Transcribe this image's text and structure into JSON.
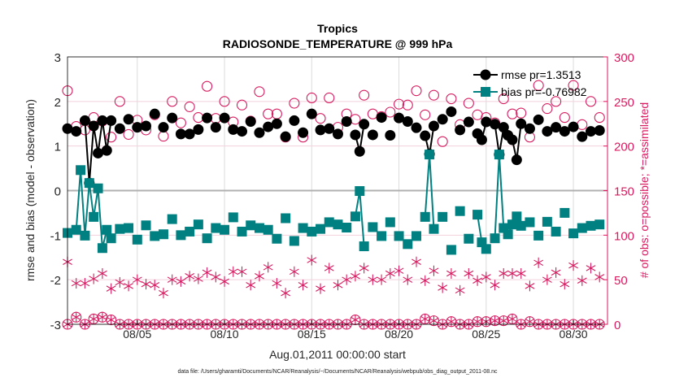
{
  "chart_data": {
    "type": "line",
    "title": "Tropics",
    "subtitle": "RADIOSONDE_TEMPERATURE @ 999 hPa",
    "xlabel": "Aug.01,2011 00:00:00 start",
    "ylabel": "rmse and bias (model - observation)",
    "ylabel_right": "# of obs: o=possible; *=assimilated",
    "footnote": "data file: /Users/gharamti/Documents/NCAR/Reanalysis/~/Documents/NCAR/Reanalysis/webpub/obs_diag_output_2011-08.nc",
    "xlim": [
      "08/01 00",
      "08/31 22"
    ],
    "ylim": [
      -3,
      3
    ],
    "ylim_right": [
      0,
      300
    ],
    "x_ticks": [
      "08/05",
      "08/10",
      "08/15",
      "08/20",
      "08/25",
      "08/30"
    ],
    "y_ticks": [
      "3",
      "2",
      "1",
      "0",
      "-1",
      "-2",
      "-3"
    ],
    "y_ticks_right": [
      "300",
      "250",
      "200",
      "150",
      "100",
      "50",
      "0"
    ],
    "grid": true,
    "legend_position": "top-right",
    "colors": {
      "rmse": "#000000",
      "bias": "#008080",
      "obs": "#d81b60",
      "zero_line": "#b0b0b0"
    },
    "series": [
      {
        "name": "rmse pr=1.3513",
        "axis": "left",
        "marker": "filled-circle",
        "points": [
          [
            "08/01 00",
            1.39
          ],
          [
            "08/01 12",
            1.33
          ],
          [
            "08/02 00",
            1.57
          ],
          [
            "08/02 06",
            0.17
          ],
          [
            "08/02 12",
            1.45
          ],
          [
            "08/02 18",
            0.84
          ],
          [
            "08/03 00",
            1.57
          ],
          [
            "08/03 06",
            0.9
          ],
          [
            "08/03 12",
            1.57
          ],
          [
            "08/04 00",
            1.39
          ],
          [
            "08/04 12",
            1.6
          ],
          [
            "08/05 00",
            1.42
          ],
          [
            "08/05 12",
            1.45
          ],
          [
            "08/06 00",
            1.72
          ],
          [
            "08/06 12",
            1.42
          ],
          [
            "08/07 00",
            1.63
          ],
          [
            "08/07 12",
            1.27
          ],
          [
            "08/08 00",
            1.27
          ],
          [
            "08/08 12",
            1.37
          ],
          [
            "08/09 00",
            1.63
          ],
          [
            "08/09 12",
            1.42
          ],
          [
            "08/10 00",
            1.63
          ],
          [
            "08/10 12",
            1.37
          ],
          [
            "08/11 00",
            1.33
          ],
          [
            "08/11 12",
            1.55
          ],
          [
            "08/12 00",
            1.3
          ],
          [
            "08/12 12",
            1.43
          ],
          [
            "08/13 00",
            1.5
          ],
          [
            "08/13 12",
            1.21
          ],
          [
            "08/14 00",
            1.57
          ],
          [
            "08/14 12",
            1.3
          ],
          [
            "08/15 00",
            1.72
          ],
          [
            "08/15 12",
            1.36
          ],
          [
            "08/16 00",
            1.39
          ],
          [
            "08/16 12",
            1.27
          ],
          [
            "08/17 00",
            1.55
          ],
          [
            "08/17 12",
            1.25
          ],
          [
            "08/17 18",
            0.88
          ],
          [
            "08/18 00",
            1.49
          ],
          [
            "08/18 12",
            1.25
          ],
          [
            "08/19 00",
            1.64
          ],
          [
            "08/19 12",
            1.24
          ],
          [
            "08/20 00",
            1.63
          ],
          [
            "08/20 12",
            1.55
          ],
          [
            "08/21 00",
            1.41
          ],
          [
            "08/21 12",
            1.23
          ],
          [
            "08/21 18",
            0.82
          ],
          [
            "08/22 00",
            1.45
          ],
          [
            "08/22 12",
            1.6
          ],
          [
            "08/23 00",
            1.77
          ],
          [
            "08/23 12",
            1.36
          ],
          [
            "08/24 00",
            1.54
          ],
          [
            "08/24 12",
            1.28
          ],
          [
            "08/24 18",
            1.14
          ],
          [
            "08/25 00",
            1.54
          ],
          [
            "08/25 12",
            1.49
          ],
          [
            "08/25 18",
            0.81
          ],
          [
            "08/26 00",
            1.42
          ],
          [
            "08/26 06",
            1.24
          ],
          [
            "08/26 12",
            1.14
          ],
          [
            "08/26 18",
            0.69
          ],
          [
            "08/27 00",
            1.5
          ],
          [
            "08/27 12",
            1.39
          ],
          [
            "08/28 00",
            1.59
          ],
          [
            "08/28 12",
            1.33
          ],
          [
            "08/29 00",
            1.42
          ],
          [
            "08/29 12",
            1.33
          ],
          [
            "08/30 00",
            1.43
          ],
          [
            "08/30 12",
            1.21
          ],
          [
            "08/31 00",
            1.33
          ],
          [
            "08/31 12",
            1.35
          ]
        ]
      },
      {
        "name": "bias pr=-0.76982",
        "axis": "left",
        "marker": "filled-square",
        "points": [
          [
            "08/01 00",
            -0.95
          ],
          [
            "08/01 12",
            -0.88
          ],
          [
            "08/01 18",
            0.46
          ],
          [
            "08/02 00",
            -1.01
          ],
          [
            "08/02 06",
            0.17
          ],
          [
            "08/02 12",
            -0.59
          ],
          [
            "08/02 18",
            0.05
          ],
          [
            "08/03 00",
            -1.29
          ],
          [
            "08/03 06",
            -0.88
          ],
          [
            "08/03 12",
            -1.07
          ],
          [
            "08/04 00",
            -0.86
          ],
          [
            "08/04 12",
            -0.84
          ],
          [
            "08/05 00",
            -1.1
          ],
          [
            "08/05 12",
            -0.78
          ],
          [
            "08/06 00",
            -1.02
          ],
          [
            "08/06 12",
            -0.98
          ],
          [
            "08/07 00",
            -0.64
          ],
          [
            "08/07 12",
            -1.0
          ],
          [
            "08/08 00",
            -0.92
          ],
          [
            "08/08 12",
            -0.76
          ],
          [
            "08/09 00",
            -1.07
          ],
          [
            "08/09 12",
            -0.84
          ],
          [
            "08/10 00",
            -0.88
          ],
          [
            "08/10 12",
            -0.6
          ],
          [
            "08/11 00",
            -0.92
          ],
          [
            "08/11 12",
            -0.78
          ],
          [
            "08/12 00",
            -0.84
          ],
          [
            "08/12 12",
            -0.88
          ],
          [
            "08/13 00",
            -1.08
          ],
          [
            "08/13 12",
            -0.62
          ],
          [
            "08/14 00",
            -1.13
          ],
          [
            "08/14 12",
            -0.84
          ],
          [
            "08/15 00",
            -0.92
          ],
          [
            "08/15 12",
            -0.86
          ],
          [
            "08/16 00",
            -0.71
          ],
          [
            "08/16 12",
            -0.76
          ],
          [
            "08/17 00",
            -0.83
          ],
          [
            "08/17 12",
            -0.58
          ],
          [
            "08/17 18",
            -0.01
          ],
          [
            "08/18 00",
            -1.25
          ],
          [
            "08/18 12",
            -0.82
          ],
          [
            "08/19 00",
            -1.02
          ],
          [
            "08/19 12",
            -0.71
          ],
          [
            "08/20 00",
            -1.02
          ],
          [
            "08/20 12",
            -1.2
          ],
          [
            "08/21 00",
            -1.02
          ],
          [
            "08/21 12",
            -0.59
          ],
          [
            "08/21 18",
            0.81
          ],
          [
            "08/22 00",
            -0.86
          ],
          [
            "08/22 12",
            -0.59
          ],
          [
            "08/23 00",
            -1.33
          ],
          [
            "08/23 12",
            -0.46
          ],
          [
            "08/24 00",
            -1.08
          ],
          [
            "08/24 12",
            -0.54
          ],
          [
            "08/24 18",
            -1.16
          ],
          [
            "08/25 00",
            -1.31
          ],
          [
            "08/25 12",
            -1.07
          ],
          [
            "08/25 18",
            0.81
          ],
          [
            "08/26 00",
            -0.84
          ],
          [
            "08/26 06",
            -0.98
          ],
          [
            "08/26 12",
            -0.76
          ],
          [
            "08/26 18",
            -0.58
          ],
          [
            "08/27 00",
            -0.79
          ],
          [
            "08/27 12",
            -0.71
          ],
          [
            "08/28 00",
            -1.01
          ],
          [
            "08/28 12",
            -0.7
          ],
          [
            "08/29 00",
            -0.92
          ],
          [
            "08/29 12",
            -0.5
          ],
          [
            "08/30 00",
            -0.96
          ],
          [
            "08/30 12",
            -0.84
          ],
          [
            "08/31 00",
            -0.79
          ],
          [
            "08/31 12",
            -0.76
          ]
        ]
      }
    ],
    "obs_times": [
      "08/01 00",
      "08/01 12",
      "08/02 00",
      "08/02 12",
      "08/03 00",
      "08/03 12",
      "08/04 00",
      "08/04 12",
      "08/05 00",
      "08/05 12",
      "08/06 00",
      "08/06 12",
      "08/07 00",
      "08/07 12",
      "08/08 00",
      "08/08 12",
      "08/09 00",
      "08/09 12",
      "08/10 00",
      "08/10 12",
      "08/11 00",
      "08/11 12",
      "08/12 00",
      "08/12 12",
      "08/13 00",
      "08/13 12",
      "08/14 00",
      "08/14 12",
      "08/15 00",
      "08/15 12",
      "08/16 00",
      "08/16 12",
      "08/17 00",
      "08/17 12",
      "08/18 00",
      "08/18 12",
      "08/19 00",
      "08/19 12",
      "08/20 00",
      "08/20 12",
      "08/21 00",
      "08/21 12",
      "08/22 00",
      "08/22 12",
      "08/23 00",
      "08/23 12",
      "08/24 00",
      "08/24 12",
      "08/25 00",
      "08/25 12",
      "08/26 00",
      "08/26 12",
      "08/27 00",
      "08/27 12",
      "08/28 00",
      "08/28 12",
      "08/29 00",
      "08/29 12",
      "08/30 00",
      "08/30 12",
      "08/31 00",
      "08/31 12"
    ],
    "obs_series": [
      {
        "marker": "open-circle",
        "axis": "right",
        "values": [
          262,
          222,
          218,
          232,
          228,
          210,
          250,
          213,
          229,
          218,
          235,
          211,
          250,
          226,
          244,
          232,
          267,
          231,
          250,
          227,
          246,
          228,
          261,
          236,
          236,
          210,
          248,
          210,
          254,
          231,
          254,
          221,
          236,
          230,
          257,
          236,
          233,
          238,
          247,
          246,
          262,
          235,
          257,
          205,
          253,
          224,
          248,
          235,
          232,
          226,
          253,
          236,
          237,
          210,
          268,
          242,
          250,
          232,
          268,
          224,
          250,
          232
        ]
      },
      {
        "marker": "asterisk",
        "axis": "right",
        "values": [
          70,
          46,
          46,
          51,
          57,
          40,
          47,
          43,
          50,
          45,
          44,
          35,
          50,
          48,
          54,
          51,
          58,
          53,
          48,
          59,
          59,
          44,
          54,
          64,
          46,
          35,
          59,
          44,
          72,
          40,
          63,
          44,
          50,
          54,
          63,
          50,
          50,
          57,
          60,
          50,
          70,
          49,
          60,
          41,
          57,
          38,
          57,
          49,
          53,
          44,
          57,
          57,
          57,
          43,
          69,
          50,
          58,
          45,
          66,
          49,
          63,
          53
        ]
      },
      {
        "marker": "circle-asterisk",
        "axis": "right",
        "values": [
          0,
          8,
          0,
          6,
          8,
          5,
          0,
          0,
          0,
          0,
          0,
          0,
          0,
          0,
          0,
          0,
          0,
          0,
          0,
          0,
          0,
          0,
          0,
          0,
          0,
          0,
          0,
          0,
          0,
          0,
          0,
          0,
          0,
          5,
          0,
          0,
          0,
          0,
          0,
          0,
          0,
          6,
          4,
          0,
          3,
          0,
          0,
          3,
          3,
          4,
          4,
          6,
          0,
          3,
          0,
          0,
          0,
          0,
          0,
          0,
          0,
          0
        ]
      }
    ]
  }
}
